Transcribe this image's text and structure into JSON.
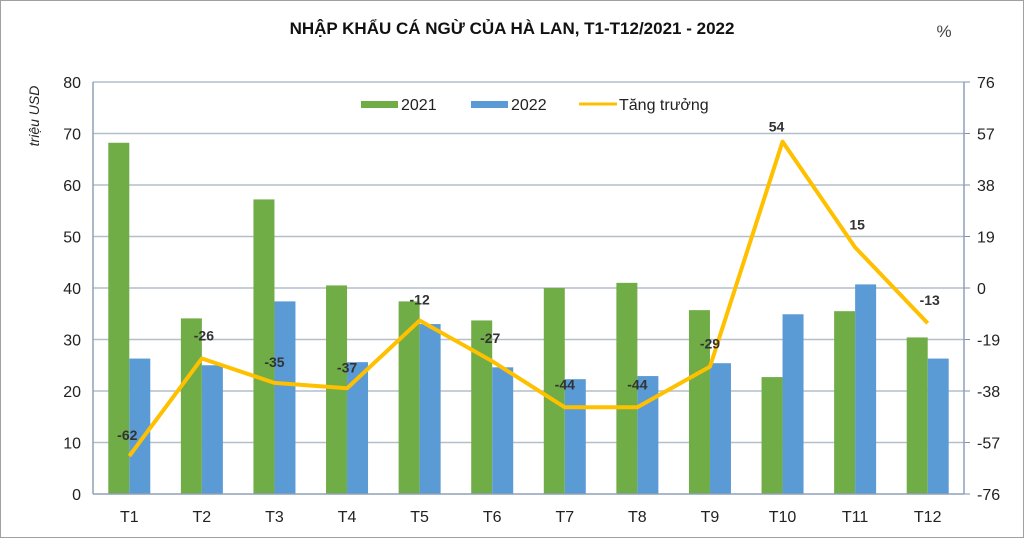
{
  "chart_data": {
    "type": "bar+line",
    "title": "NHẬP KHẨU CÁ NGỪ CỦA HÀ LAN, T1-T12/2021 - 2022",
    "ylabel": "triệu USD",
    "y2label": "%",
    "xlabel": "",
    "categories": [
      "T1",
      "T2",
      "T3",
      "T4",
      "T5",
      "T6",
      "T7",
      "T8",
      "T9",
      "T10",
      "T11",
      "T12"
    ],
    "ylim": [
      0,
      80
    ],
    "yticks": [
      0,
      10,
      20,
      30,
      40,
      50,
      60,
      70,
      80
    ],
    "y2lim": [
      -76,
      76
    ],
    "y2ticks": [
      -76,
      -57,
      -38,
      -19,
      0,
      19,
      38,
      57,
      76
    ],
    "grid": true,
    "legend_position": "top-center",
    "series": [
      {
        "name": "2021",
        "type": "bar",
        "axis": "left",
        "color": "#70ad47",
        "values": [
          68.2,
          34.1,
          57.2,
          40.5,
          37.4,
          33.7,
          40.0,
          41.0,
          35.7,
          22.7,
          35.5,
          30.4
        ]
      },
      {
        "name": "2022",
        "type": "bar",
        "axis": "left",
        "color": "#5b9bd5",
        "values": [
          26.3,
          25.0,
          37.4,
          25.6,
          33.0,
          24.6,
          22.3,
          22.9,
          25.4,
          34.9,
          40.7,
          26.3
        ]
      },
      {
        "name": "Tăng trưởng",
        "type": "line",
        "axis": "right",
        "color": "#ffc000",
        "values": [
          -62,
          -26,
          -35,
          -37,
          -12,
          -27,
          -44,
          -44,
          -29,
          54,
          15,
          -13
        ],
        "labels": [
          "-62",
          "-26",
          "-35",
          "-37",
          "-12",
          "-27",
          "-44",
          "-44",
          "-29",
          "54",
          "15",
          "-13"
        ]
      }
    ]
  }
}
